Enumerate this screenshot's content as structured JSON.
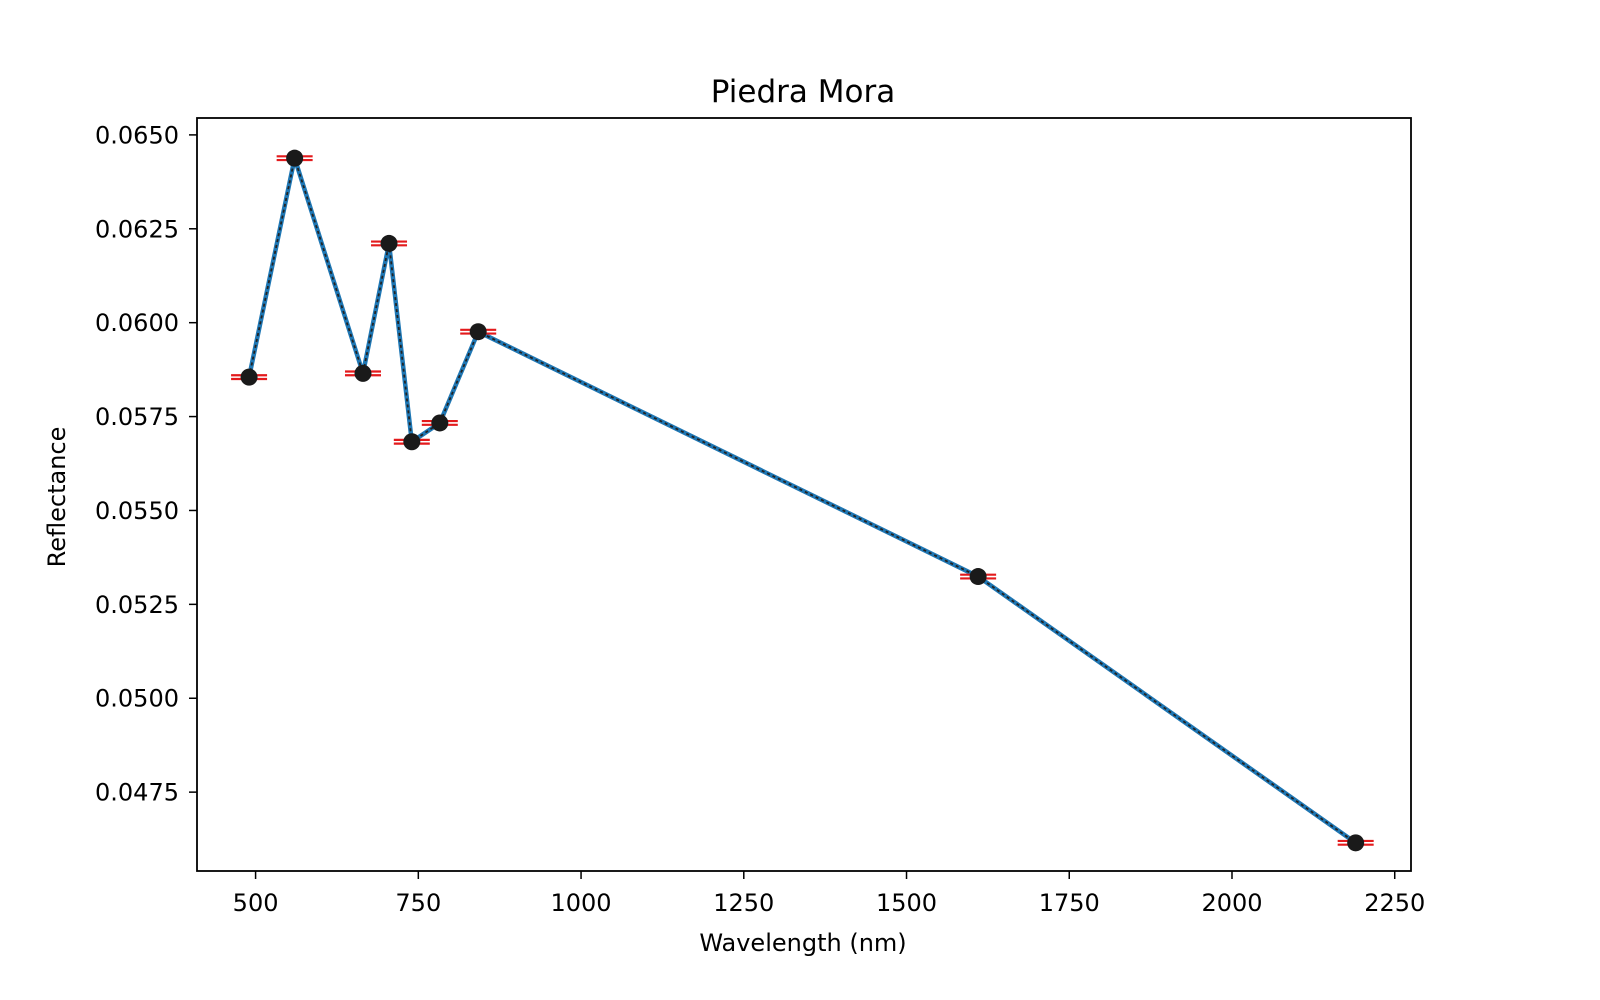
{
  "chart_data": {
    "type": "line",
    "title": "Piedra Mora",
    "xlabel": "Wavelength (nm)",
    "ylabel": "Reflectance",
    "xlim": [
      410,
      2275
    ],
    "ylim": [
      0.0454,
      0.06545
    ],
    "xticks": [
      {
        "value": 500,
        "label": "500"
      },
      {
        "value": 750,
        "label": "750"
      },
      {
        "value": 1000,
        "label": "1000"
      },
      {
        "value": 1250,
        "label": "1250"
      },
      {
        "value": 1500,
        "label": "1500"
      },
      {
        "value": 1750,
        "label": "1750"
      },
      {
        "value": 2000,
        "label": "2000"
      },
      {
        "value": 2250,
        "label": "2250"
      }
    ],
    "yticks": [
      {
        "value": 0.0475,
        "label": "0.0475"
      },
      {
        "value": 0.05,
        "label": "0.0500"
      },
      {
        "value": 0.0525,
        "label": "0.0525"
      },
      {
        "value": 0.055,
        "label": "0.0550"
      },
      {
        "value": 0.0575,
        "label": "0.0575"
      },
      {
        "value": 0.06,
        "label": "0.0600"
      },
      {
        "value": 0.0625,
        "label": "0.0625"
      },
      {
        "value": 0.065,
        "label": "0.0650"
      }
    ],
    "grid": false,
    "series": [
      {
        "x": [
          490,
          560,
          665,
          705,
          740,
          783,
          842,
          1610,
          2190
        ],
        "y": [
          0.05855,
          0.06438,
          0.05865,
          0.06211,
          0.05683,
          0.05733,
          0.05976,
          0.05324,
          0.04615
        ],
        "error": [
          5e-05,
          5e-05,
          5e-05,
          5e-05,
          5e-05,
          5e-05,
          5e-05,
          5e-05,
          5e-05
        ],
        "line_color": "#1f77b4",
        "dash_color": "#222222",
        "marker_color": "#1a1a1a",
        "error_color": "#e31a1c"
      }
    ]
  }
}
